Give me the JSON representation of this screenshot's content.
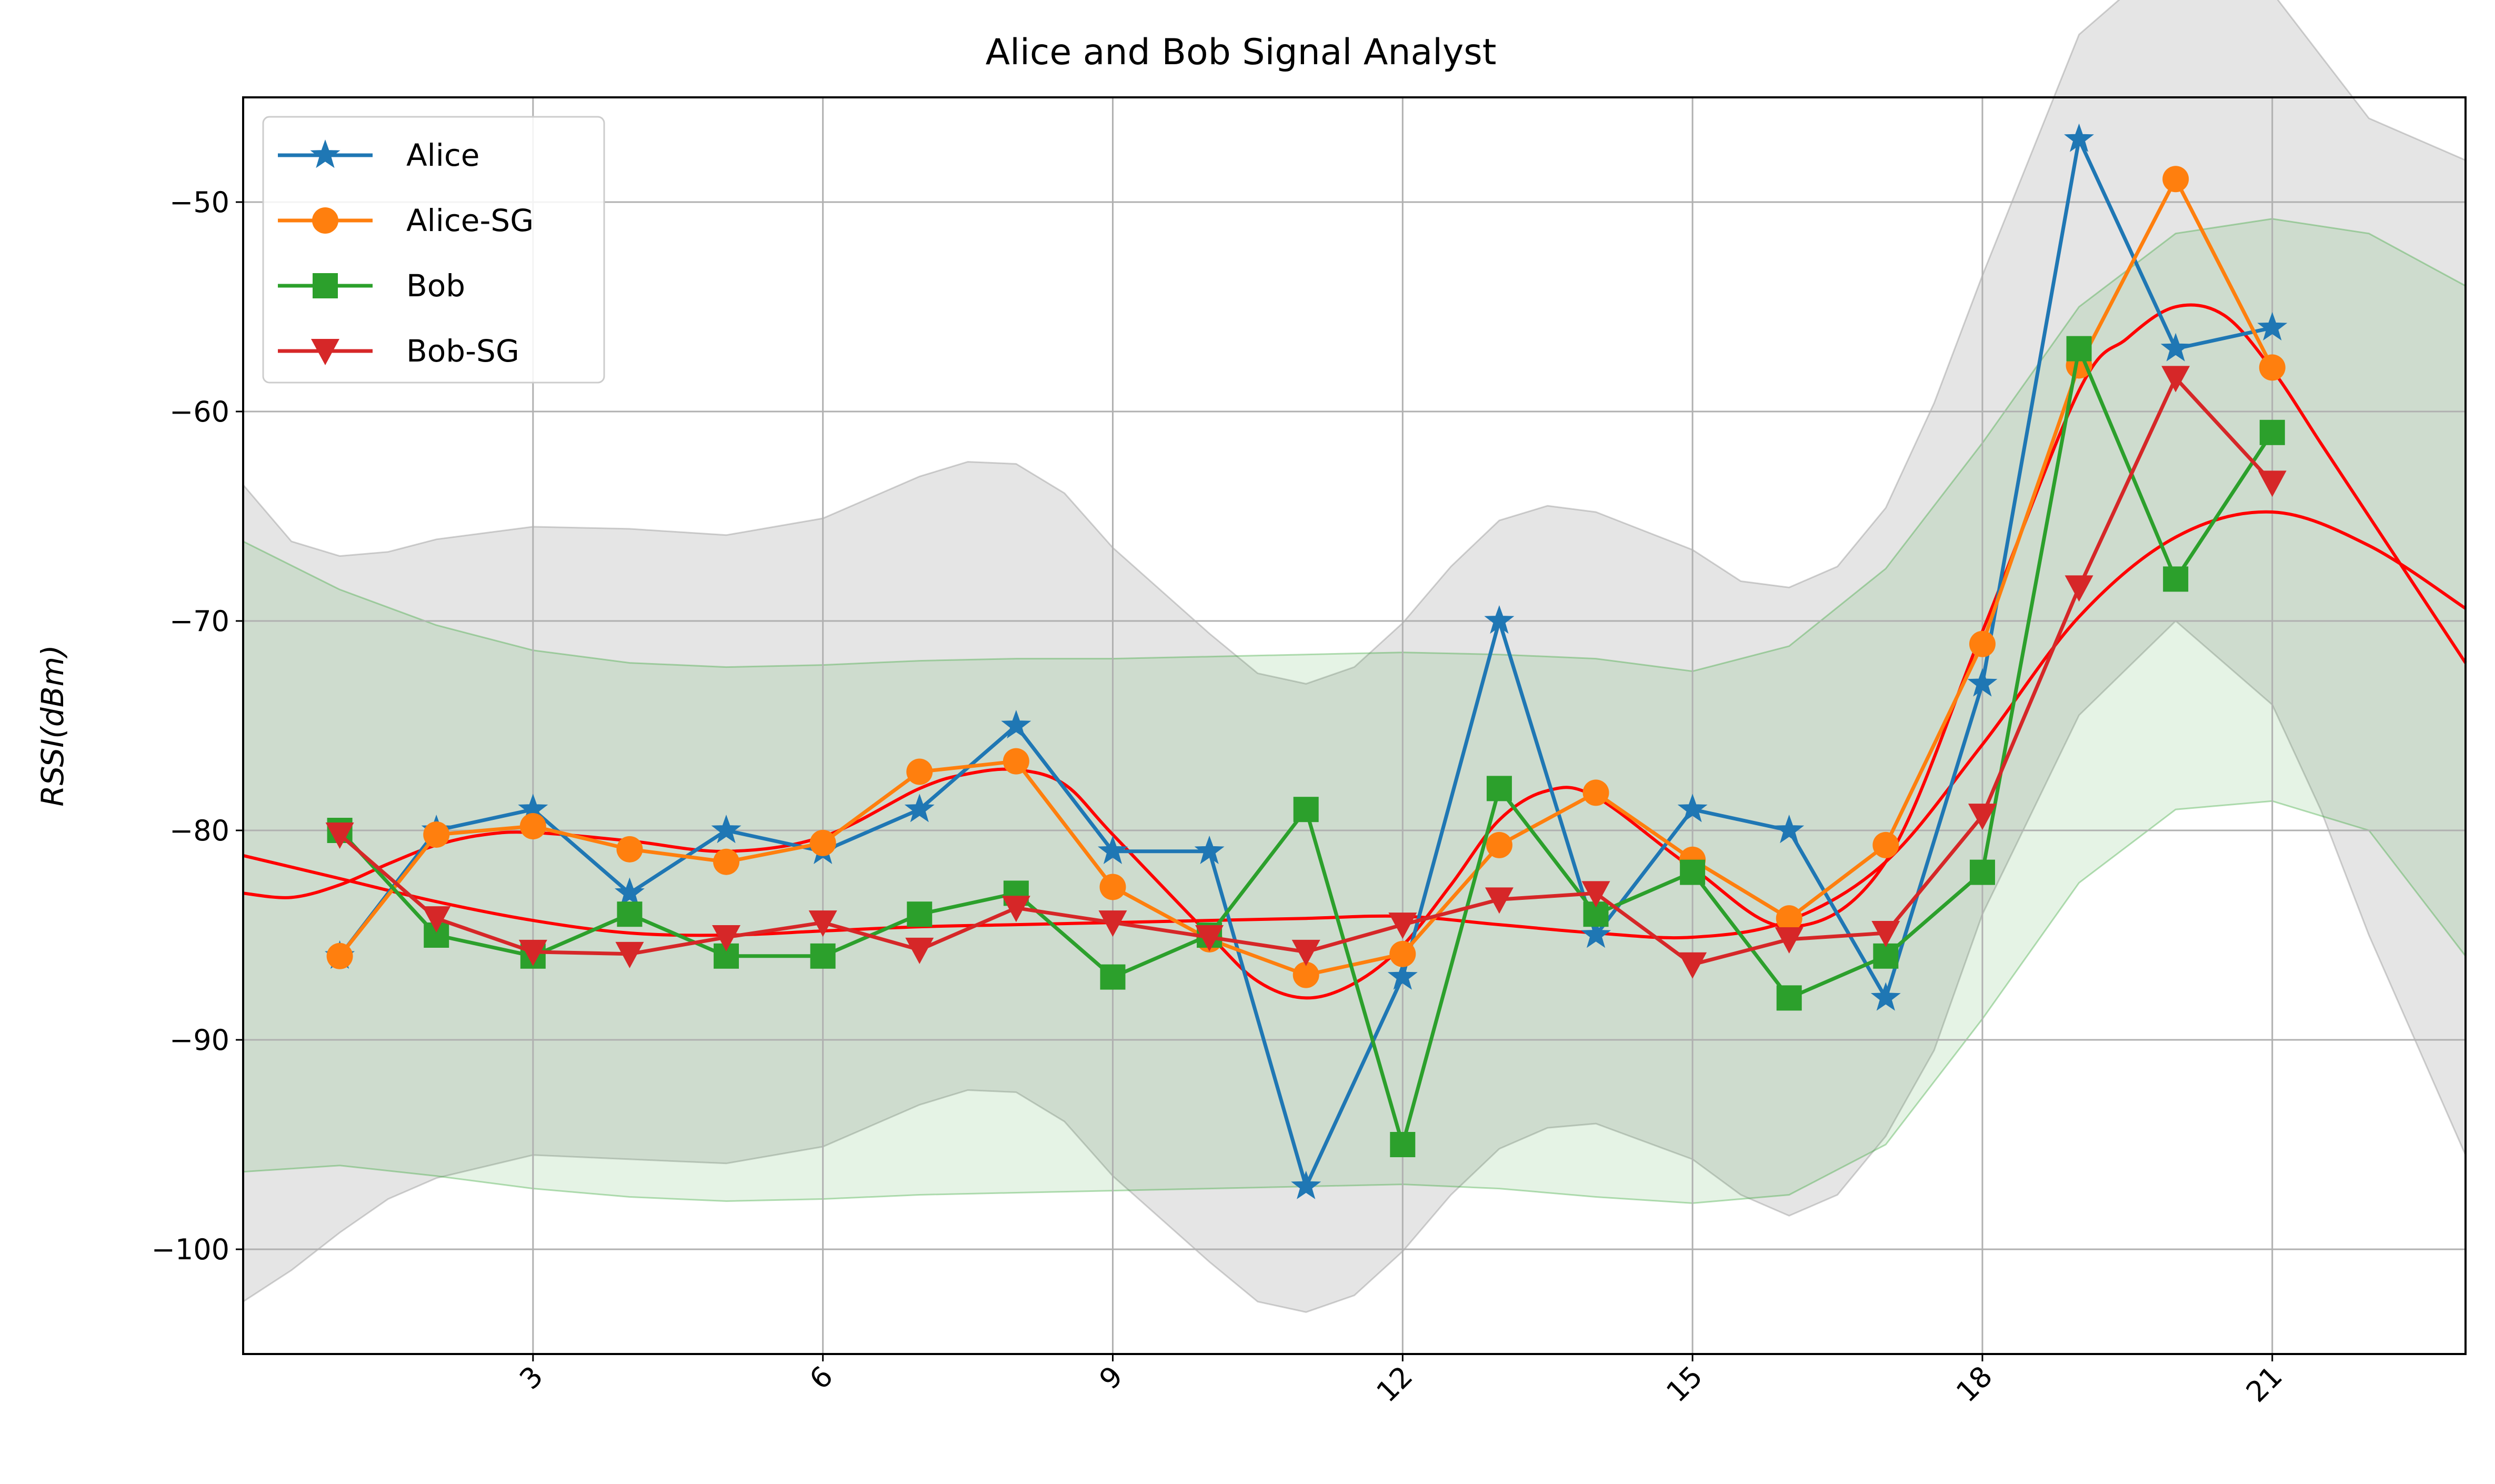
{
  "chart_data": {
    "type": "line",
    "title": "Alice and Bob Signal Analyst",
    "xlabel": "",
    "ylabel": "RSSI(dBm)",
    "xlim": [
      0,
      23
    ],
    "ylim": [
      -105,
      -45
    ],
    "xticks": [
      3,
      6,
      9,
      12,
      15,
      18,
      21
    ],
    "yticks": [
      -50,
      -60,
      -70,
      -80,
      -90,
      -100
    ],
    "ytick_labels": [
      "−50",
      "−60",
      "−70",
      "−80",
      "−90",
      "−100"
    ],
    "grid": true,
    "legend_position": "upper-left",
    "x": [
      1,
      2,
      3,
      4,
      5,
      6,
      7,
      8,
      9,
      10,
      11,
      12,
      13,
      14,
      15,
      16,
      17,
      18,
      19,
      20,
      21
    ],
    "series": [
      {
        "name": "Alice",
        "color": "#1f77b4",
        "marker": "star",
        "values": [
          -86,
          -80,
          -79,
          -83,
          -80,
          -81,
          -79,
          -75,
          -81,
          -81,
          -97,
          -87,
          -70,
          -85,
          -79,
          -80,
          -88,
          -73,
          -47,
          -57,
          -56
        ]
      },
      {
        "name": "Alice-SG",
        "color": "#ff7f0e",
        "marker": "circle",
        "values": [
          -86,
          -80.2,
          -79.8,
          -80.9,
          -81.5,
          -80.6,
          -77.2,
          -76.7,
          -82.7,
          -85.2,
          -86.9,
          -85.9,
          -80.7,
          -78.2,
          -81.4,
          -84.2,
          -80.7,
          -71.1,
          -57.8,
          -48.9,
          -57.9
        ]
      },
      {
        "name": "Bob",
        "color": "#2ca02c",
        "marker": "square",
        "values": [
          -80,
          -85,
          -86,
          -84,
          -86,
          -86,
          -84,
          -83,
          -87,
          -85,
          -79,
          -95,
          -78,
          -84,
          -82,
          -88,
          -86,
          -82,
          -57,
          -68,
          -61
        ]
      },
      {
        "name": "Bob-SG",
        "color": "#d62728",
        "marker": "triangle-down",
        "values": [
          -80.2,
          -84.2,
          -85.8,
          -85.9,
          -85.1,
          -84.4,
          -85.7,
          -83.7,
          -84.4,
          -85.1,
          -85.8,
          -84.5,
          -83.3,
          -83.0,
          -86.4,
          -85.2,
          -84.9,
          -79.3,
          -68.4,
          -58.4,
          -63.4
        ]
      }
    ],
    "fits": [
      {
        "color": "#ff0000",
        "x": [
          0,
          0.5,
          1,
          1.5,
          2,
          2.5,
          3,
          4,
          5,
          6,
          7,
          7.5,
          8,
          8.5,
          9,
          10,
          10.5,
          11,
          11.5,
          12,
          12.5,
          13,
          13.5,
          14,
          15,
          16,
          17,
          18,
          19,
          19.5,
          20,
          20.5,
          21,
          21.5,
          22,
          23
        ],
        "y": [
          -83,
          -83.2,
          -82.6,
          -81.6,
          -80.7,
          -80.2,
          -80.1,
          -80.5,
          -81,
          -80.3,
          -78,
          -77.3,
          -77.1,
          -77.8,
          -80.2,
          -85,
          -87.2,
          -88,
          -87.3,
          -85.5,
          -82.6,
          -79.5,
          -78.1,
          -78.4,
          -81.8,
          -84.6,
          -81.5,
          -70.5,
          -59,
          -56.5,
          -55,
          -55.4,
          -58,
          -61.5,
          -65,
          -72
        ]
      },
      {
        "color": "#ff0000",
        "x": [
          0,
          1,
          2,
          3,
          4,
          5,
          6,
          7,
          8,
          9,
          10,
          11,
          12,
          13,
          14,
          15,
          16,
          17,
          18,
          19,
          20,
          21,
          22,
          23
        ],
        "y": [
          -81.2,
          -82.3,
          -83.4,
          -84.3,
          -84.9,
          -85,
          -84.8,
          -84.6,
          -84.5,
          -84.4,
          -84.3,
          -84.2,
          -84.1,
          -84.5,
          -84.9,
          -85.1,
          -84.3,
          -81.5,
          -75.9,
          -69.8,
          -66,
          -64.8,
          -66.4,
          -69.4
        ]
      }
    ],
    "bands": [
      {
        "color": "#7f7f7f",
        "opacity": 0.2,
        "x": [
          0,
          0.5,
          1,
          1.5,
          2,
          3,
          4,
          5,
          6,
          7,
          7.5,
          8,
          8.5,
          9,
          10,
          10.5,
          11,
          11.5,
          12,
          12.5,
          13,
          13.5,
          14,
          15,
          15.5,
          16,
          16.5,
          17,
          17.5,
          18,
          19,
          20,
          21,
          21.5,
          22,
          23
        ],
        "upper": [
          -63.5,
          -66.2,
          -66.9,
          -66.7,
          -66.1,
          -65.5,
          -65.6,
          -65.9,
          -65.1,
          -63.1,
          -62.4,
          -62.5,
          -63.9,
          -66.5,
          -70.6,
          -72.5,
          -73,
          -72.2,
          -70.1,
          -67.4,
          -65.2,
          -64.5,
          -64.8,
          -66.6,
          -68.1,
          -68.4,
          -67.4,
          -64.6,
          -59.6,
          -53.5,
          -42,
          -38,
          -40,
          -43,
          -46,
          -48
        ],
        "lower": [
          -102.5,
          -101.0,
          -99.2,
          -97.6,
          -96.6,
          -95.5,
          -95.7,
          -95.9,
          -95.1,
          -93.1,
          -92.4,
          -92.5,
          -93.9,
          -96.5,
          -100.6,
          -102.5,
          -103,
          -102.2,
          -100.1,
          -97.4,
          -95.2,
          -94.2,
          -94.0,
          -95.7,
          -97.4,
          -98.4,
          -97.4,
          -94.6,
          -90.5,
          -84,
          -74.5,
          -70,
          -74,
          -79,
          -85,
          -95.5
        ]
      },
      {
        "color": "#2ca02c",
        "opacity": 0.12,
        "x": [
          0,
          1,
          2,
          3,
          4,
          5,
          6,
          7,
          8,
          9,
          10,
          11,
          12,
          13,
          14,
          15,
          16,
          17,
          18,
          19,
          20,
          21,
          22,
          23
        ],
        "upper": [
          -66.2,
          -68.5,
          -70.2,
          -71.4,
          -72.0,
          -72.2,
          -72.1,
          -71.9,
          -71.8,
          -71.8,
          -71.7,
          -71.6,
          -71.5,
          -71.6,
          -71.8,
          -72.4,
          -71.2,
          -67.5,
          -61.5,
          -55.0,
          -51.5,
          -50.8,
          -51.5,
          -54.0
        ],
        "lower": [
          -96.3,
          -96.0,
          -96.5,
          -97.1,
          -97.5,
          -97.7,
          -97.6,
          -97.4,
          -97.3,
          -97.2,
          -97.1,
          -97.0,
          -96.9,
          -97.1,
          -97.5,
          -97.8,
          -97.4,
          -95.0,
          -89.0,
          -82.5,
          -79.0,
          -78.6,
          -80.0,
          -86.0
        ]
      }
    ]
  }
}
